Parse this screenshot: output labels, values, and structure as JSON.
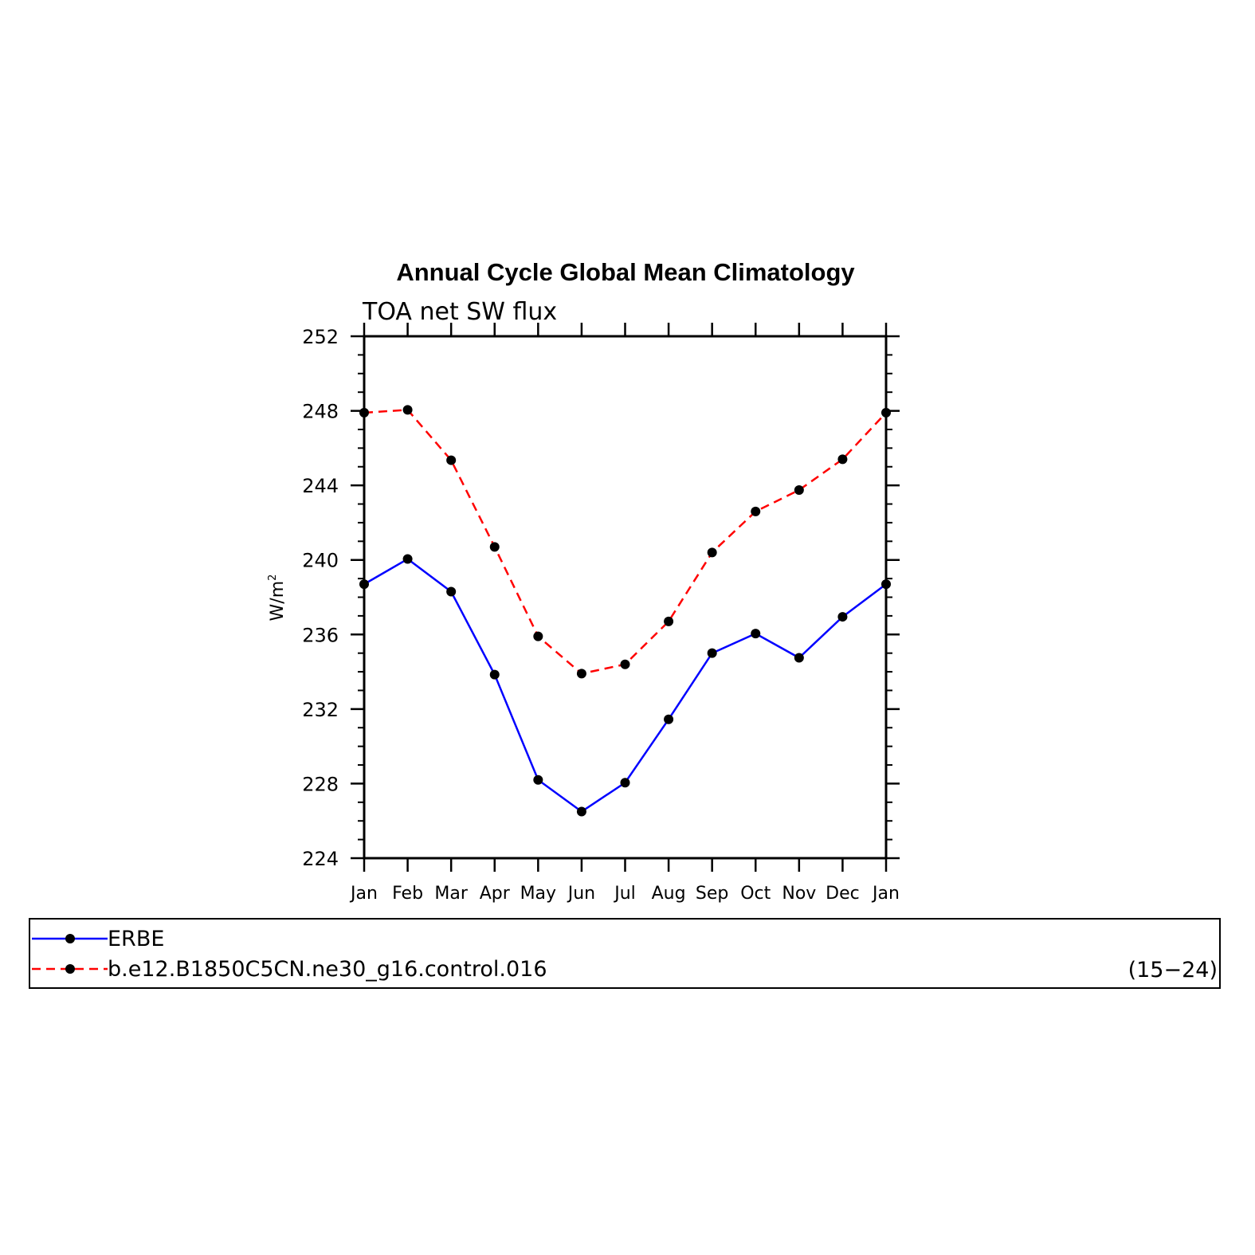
{
  "chart_data": {
    "type": "line",
    "title": "Annual Cycle Global Mean Climatology",
    "subtitle": "TOA net SW flux",
    "ylabel": "W/m²",
    "ylabel_base": "W/m",
    "ylabel_sup": "2",
    "xlabel": "",
    "categories": [
      "Jan",
      "Feb",
      "Mar",
      "Apr",
      "May",
      "Jun",
      "Jul",
      "Aug",
      "Sep",
      "Oct",
      "Nov",
      "Dec",
      "Jan"
    ],
    "ylim": [
      224,
      252
    ],
    "yticks": [
      224,
      228,
      232,
      236,
      240,
      244,
      248,
      252
    ],
    "grid": false,
    "legend_position": "bottom",
    "series": [
      {
        "name": "ERBE",
        "color": "#0000ff",
        "style": "solid",
        "values": [
          238.7,
          240.05,
          238.3,
          233.85,
          228.2,
          226.5,
          228.05,
          231.45,
          235.0,
          236.05,
          234.75,
          236.95,
          238.7
        ]
      },
      {
        "name": "b.e12.B1850C5CN.ne30_g16.control.016",
        "color": "#ff0000",
        "style": "dashed",
        "values": [
          247.9,
          248.05,
          245.35,
          240.7,
          235.9,
          233.9,
          234.4,
          236.7,
          240.4,
          242.6,
          243.75,
          245.4,
          247.9
        ]
      }
    ],
    "legend_annotation": "(15−24)"
  }
}
